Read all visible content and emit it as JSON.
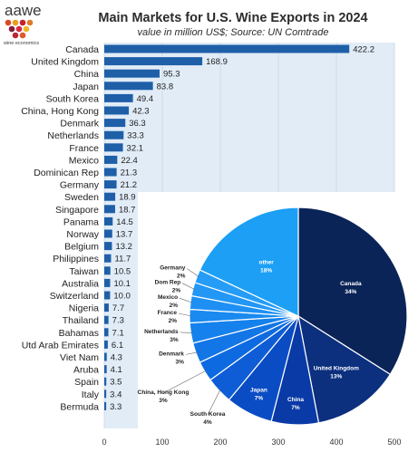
{
  "brand": {
    "name": "aawe",
    "tagline": "wine economics"
  },
  "title": "Main Markets for U.S. Wine Exports in 2024",
  "subtitle": "value in million US$; Source: UN Comtrade",
  "colors": {
    "bar": "#1f5fa8",
    "panel": "#e1ecf7",
    "title": "#2b2b2b",
    "pie": [
      "#0a2457",
      "#0c2f7e",
      "#0a3aa6",
      "#0a4cc4",
      "#0e5dd6",
      "#0e6ae0",
      "#1276e6",
      "#1581ec",
      "#1a89f0",
      "#1e90f3",
      "#2297f5",
      "#259df7",
      "#29a3f9",
      "#1c9ff5"
    ]
  },
  "chart_data": [
    {
      "type": "bar",
      "orientation": "horizontal",
      "categories": [
        "Canada",
        "United Kingdom",
        "China",
        "Japan",
        "South Korea",
        "China, Hong Kong",
        "Denmark",
        "Netherlands",
        "France",
        "Mexico",
        "Dominican Rep",
        "Germany",
        "Sweden",
        "Singapore",
        "Panama",
        "Norway",
        "Belgium",
        "Philippines",
        "Taiwan",
        "Australia",
        "Switzerland",
        "Nigeria",
        "Thailand",
        "Bahamas",
        "Utd Arab Emirates",
        "Viet Nam",
        "Aruba",
        "Spain",
        "Italy",
        "Bermuda"
      ],
      "values": [
        422.2,
        168.9,
        95.3,
        83.8,
        49.4,
        42.3,
        36.3,
        33.3,
        32.1,
        22.4,
        21.3,
        21.2,
        18.9,
        18.7,
        14.5,
        13.7,
        13.2,
        11.7,
        10.5,
        10.1,
        10.0,
        7.7,
        7.3,
        7.1,
        6.1,
        4.3,
        4.1,
        3.5,
        3.4,
        3.3
      ],
      "value_labels": [
        "422.2",
        "168.9",
        "95.3",
        "83.8",
        "49.4",
        "42.3",
        "36.3",
        "33.3",
        "32.1",
        "22.4",
        "21.3",
        "21.2",
        "18.9",
        "18.7",
        "14.5",
        "13.7",
        "13.2",
        "11.7",
        "10.5",
        "10.1",
        "10.0",
        "7.7",
        "7.3",
        "7.1",
        "6.1",
        "4.3",
        "4.1",
        "3.5",
        "3.4",
        "3.3"
      ],
      "xlim": [
        0,
        500
      ],
      "xticks": [
        "0",
        "100",
        "200",
        "300",
        "400",
        "500"
      ],
      "grid": true
    },
    {
      "type": "pie",
      "slices": [
        {
          "label": "Canada",
          "pct_label": "34%",
          "value": 34
        },
        {
          "label": "United Kingdom",
          "pct_label": "13%",
          "value": 13
        },
        {
          "label": "China",
          "pct_label": "7%",
          "value": 7
        },
        {
          "label": "Japan",
          "pct_label": "7%",
          "value": 7
        },
        {
          "label": "South Korea",
          "pct_label": "4%",
          "value": 4
        },
        {
          "label": "China, Hong Kong",
          "pct_label": "3%",
          "value": 3
        },
        {
          "label": "Denmark",
          "pct_label": "3%",
          "value": 3
        },
        {
          "label": "Netherlands",
          "pct_label": "3%",
          "value": 3
        },
        {
          "label": "France",
          "pct_label": "2%",
          "value": 2
        },
        {
          "label": "Mexico",
          "pct_label": "2%",
          "value": 2
        },
        {
          "label": "Dom Rep",
          "pct_label": "2%",
          "value": 2
        },
        {
          "label": "Germany",
          "pct_label": "2%",
          "value": 2
        },
        {
          "label": "other",
          "pct_label": "18%",
          "value": 18
        }
      ]
    }
  ]
}
